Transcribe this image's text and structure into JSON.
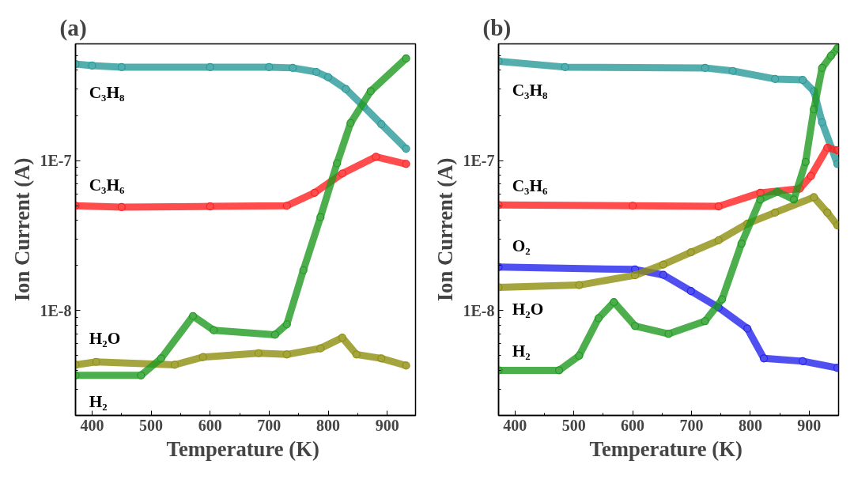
{
  "chart_data": [
    {
      "type": "line",
      "title": "(a)",
      "xlabel": "Temperature  (K)",
      "ylabel": "Ion Current (A)",
      "log": "y",
      "grid": false,
      "legend": false,
      "marker": "circle",
      "line_style": "solid",
      "xlim": [
        372,
        948
      ],
      "ylim": [
        2e-09,
        6e-07
      ],
      "xticks": [
        400,
        {
          "value": 450,
          "label": null
        },
        500,
        {
          "value": 550,
          "label": null
        },
        600,
        {
          "value": 650,
          "label": null
        },
        700,
        {
          "value": 750,
          "label": null
        },
        800,
        {
          "value": 850,
          "label": null
        },
        900
      ],
      "yticks": [
        {
          "value": 3e-09,
          "label": null
        },
        {
          "value": 4e-09,
          "label": null
        },
        {
          "value": 5e-09,
          "label": null
        },
        {
          "value": 6e-09,
          "label": null
        },
        {
          "value": 7e-09,
          "label": null
        },
        {
          "value": 8e-09,
          "label": null
        },
        {
          "value": 9e-09,
          "label": null
        },
        {
          "value": 1e-08,
          "label": "1E-8"
        },
        {
          "value": 2e-08,
          "label": null
        },
        {
          "value": 3e-08,
          "label": null
        },
        {
          "value": 4e-08,
          "label": null
        },
        {
          "value": 5e-08,
          "label": null
        },
        {
          "value": 6e-08,
          "label": null
        },
        {
          "value": 7e-08,
          "label": null
        },
        {
          "value": 8e-08,
          "label": null
        },
        {
          "value": 9e-08,
          "label": null
        },
        {
          "value": 1e-07,
          "label": "1E-7"
        },
        {
          "value": 2e-07,
          "label": null
        },
        {
          "value": 3e-07,
          "label": null
        },
        {
          "value": 4e-07,
          "label": null
        },
        {
          "value": 5e-07,
          "label": null
        }
      ],
      "series": [
        {
          "name": "C₃H₈",
          "color": "#2b9a9a",
          "x": [
            372,
            400,
            450,
            600,
            700,
            740,
            780,
            800,
            830,
            860,
            890,
            932
          ],
          "values": [
            4.4e-07,
            4.3e-07,
            4.2e-07,
            4.2e-07,
            4.2e-07,
            4.15e-07,
            3.9e-07,
            3.6e-07,
            3e-07,
            2.3e-07,
            1.75e-07,
            1.2e-07
          ]
        },
        {
          "name": "C₃H₆",
          "color": "#ff2020",
          "x": [
            372,
            450,
            600,
            730,
            777,
            824,
            881,
            932
          ],
          "values": [
            5e-08,
            4.9e-08,
            4.95e-08,
            5e-08,
            6.1e-08,
            8.2e-08,
            1.06e-07,
            9.5e-08
          ]
        },
        {
          "name": "H₂O",
          "color": "#8f8f10",
          "x": [
            372,
            407,
            540,
            588,
            682,
            730,
            787,
            824,
            848,
            890,
            932
          ],
          "values": [
            4.35e-09,
            4.55e-09,
            4.35e-09,
            4.9e-09,
            5.2e-09,
            5.1e-09,
            5.6e-09,
            6.6e-09,
            5.1e-09,
            4.8e-09,
            4.3e-09
          ]
        },
        {
          "name": "H₂",
          "color": "#1f9a1f",
          "x": [
            372,
            483,
            517,
            571,
            606,
            710,
            730,
            758,
            787,
            815,
            838,
            872,
            932
          ],
          "values": [
            3.7e-09,
            3.7e-09,
            4.8e-09,
            9.2e-09,
            7.4e-09,
            6.9e-09,
            8.1e-09,
            1.86e-08,
            4.2e-08,
            9.6e-08,
            1.78e-07,
            2.9e-07,
            4.8e-07
          ]
        }
      ]
    },
    {
      "type": "line",
      "title": "(b)",
      "xlabel": "Temperature  (K)",
      "ylabel": "Ion Current (A)",
      "log": "y",
      "grid": false,
      "legend": false,
      "marker": "circle",
      "line_style": "solid",
      "xlim": [
        372,
        950
      ],
      "ylim": [
        2e-09,
        6e-07
      ],
      "xticks": [
        400,
        {
          "value": 450,
          "label": null
        },
        500,
        {
          "value": 550,
          "label": null
        },
        600,
        {
          "value": 650,
          "label": null
        },
        700,
        {
          "value": 750,
          "label": null
        },
        800,
        {
          "value": 850,
          "label": null
        },
        900
      ],
      "yticks": [
        {
          "value": 3e-09,
          "label": null
        },
        {
          "value": 4e-09,
          "label": null
        },
        {
          "value": 5e-09,
          "label": null
        },
        {
          "value": 6e-09,
          "label": null
        },
        {
          "value": 7e-09,
          "label": null
        },
        {
          "value": 8e-09,
          "label": null
        },
        {
          "value": 9e-09,
          "label": null
        },
        {
          "value": 1e-08,
          "label": "1E-8"
        },
        {
          "value": 2e-08,
          "label": null
        },
        {
          "value": 3e-08,
          "label": null
        },
        {
          "value": 4e-08,
          "label": null
        },
        {
          "value": 5e-08,
          "label": null
        },
        {
          "value": 6e-08,
          "label": null
        },
        {
          "value": 7e-08,
          "label": null
        },
        {
          "value": 8e-08,
          "label": null
        },
        {
          "value": 9e-08,
          "label": null
        },
        {
          "value": 1e-07,
          "label": "1E-7"
        },
        {
          "value": 2e-07,
          "label": null
        },
        {
          "value": 3e-07,
          "label": null
        },
        {
          "value": 4e-07,
          "label": null
        },
        {
          "value": 5e-07,
          "label": null
        }
      ],
      "series": [
        {
          "name": "C₃H₈",
          "color": "#2b9a9a",
          "x": [
            372,
            485,
            723,
            770,
            842,
            889,
            908,
            922,
            948
          ],
          "values": [
            4.6e-07,
            4.2e-07,
            4.15e-07,
            3.96e-07,
            3.5e-07,
            3.45e-07,
            2.9e-07,
            1.8e-07,
            9.5e-08
          ]
        },
        {
          "name": "C₃H₆",
          "color": "#ff2020",
          "x": [
            372,
            600,
            746,
            817,
            884,
            903,
            931,
            948
          ],
          "values": [
            5.06e-08,
            5e-08,
            4.95e-08,
            6.1e-08,
            6.5e-08,
            7.9e-08,
            1.22e-07,
            1.17e-07
          ]
        },
        {
          "name": "O₂",
          "color": "#2424ee",
          "x": [
            372,
            604,
            652,
            699,
            746,
            795,
            823,
            889,
            948
          ],
          "values": [
            1.95e-08,
            1.88e-08,
            1.73e-08,
            1.35e-08,
            1.05e-08,
            7.6e-09,
            4.8e-09,
            4.6e-09,
            4.15e-09
          ]
        },
        {
          "name": "H₂O",
          "color": "#8f8f10",
          "x": [
            372,
            509,
            604,
            652,
            699,
            746,
            795,
            842,
            908,
            931,
            948
          ],
          "values": [
            1.43e-08,
            1.48e-08,
            1.72e-08,
            2.03e-08,
            2.45e-08,
            2.94e-08,
            3.8e-08,
            4.5e-08,
            5.7e-08,
            4.5e-08,
            3.7e-08
          ]
        },
        {
          "name": "H₂",
          "color": "#1f9a1f",
          "x": [
            372,
            475,
            509,
            542,
            568,
            604,
            661,
            723,
            752,
            785,
            817,
            846,
            874,
            894,
            908,
            922,
            937,
            948
          ],
          "values": [
            4e-09,
            4e-09,
            5e-09,
            8.9e-09,
            1.14e-08,
            7.9e-09,
            7e-09,
            8.5e-09,
            1.19e-08,
            2.8e-08,
            5.5e-08,
            6.2e-08,
            5.5e-08,
            9.8e-08,
            2.2e-07,
            4.15e-07,
            5e-07,
            5.6e-07
          ]
        }
      ]
    }
  ]
}
